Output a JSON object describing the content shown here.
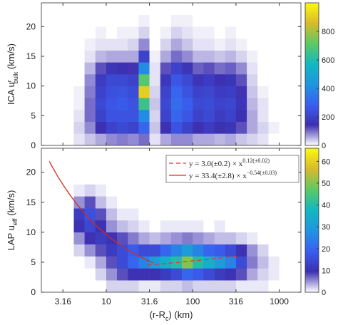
{
  "chart_data": [
    {
      "type": "heatmap",
      "log_x": true,
      "xtick_labels": false,
      "ylabel": [
        "ICA u",
        "r",
        "bulk",
        " (km/s)"
      ],
      "xlim": [
        1.78,
        1780
      ],
      "ylim": [
        0,
        24
      ],
      "xticks": [
        3.16,
        10,
        31.6,
        100,
        316,
        1000
      ],
      "yticks": [
        0,
        5,
        10,
        15,
        20
      ],
      "xbins": [
        1.78,
        2.37,
        3.16,
        4.22,
        5.62,
        7.5,
        10,
        13.3,
        17.8,
        23.7,
        31.6,
        42.2,
        56.2,
        75,
        100,
        133,
        178,
        237,
        316,
        422,
        562,
        750,
        1000,
        1334,
        1780
      ],
      "ybins": [
        0,
        2,
        4,
        6,
        8,
        10,
        12,
        14,
        16,
        18,
        20,
        22,
        24
      ],
      "counts": [
        [
          0,
          0,
          0,
          20,
          40,
          60,
          80,
          90,
          80,
          100,
          20,
          60,
          80,
          80,
          60,
          60,
          50,
          60,
          40,
          30,
          20,
          0,
          0,
          0
        ],
        [
          0,
          0,
          0,
          30,
          80,
          150,
          200,
          220,
          200,
          300,
          40,
          150,
          250,
          200,
          150,
          180,
          150,
          160,
          120,
          60,
          30,
          10,
          0,
          0
        ],
        [
          0,
          0,
          0,
          20,
          100,
          200,
          250,
          250,
          250,
          400,
          30,
          200,
          300,
          260,
          200,
          220,
          180,
          200,
          150,
          60,
          20,
          0,
          0,
          0
        ],
        [
          0,
          0,
          0,
          10,
          100,
          220,
          260,
          270,
          250,
          650,
          40,
          220,
          320,
          280,
          220,
          230,
          200,
          210,
          160,
          50,
          20,
          0,
          0,
          0
        ],
        [
          0,
          0,
          0,
          10,
          90,
          200,
          240,
          250,
          230,
          900,
          30,
          200,
          300,
          250,
          200,
          210,
          180,
          190,
          140,
          40,
          10,
          0,
          0,
          0
        ],
        [
          0,
          0,
          0,
          0,
          80,
          180,
          220,
          220,
          200,
          700,
          20,
          170,
          260,
          220,
          160,
          180,
          150,
          160,
          120,
          30,
          0,
          0,
          0,
          0
        ],
        [
          0,
          0,
          0,
          0,
          50,
          120,
          160,
          150,
          140,
          400,
          20,
          120,
          200,
          160,
          110,
          120,
          100,
          110,
          80,
          20,
          0,
          0,
          0,
          0
        ],
        [
          0,
          0,
          0,
          0,
          20,
          50,
          60,
          60,
          60,
          200,
          10,
          60,
          100,
          80,
          50,
          50,
          40,
          50,
          30,
          10,
          0,
          0,
          0,
          0
        ],
        [
          0,
          0,
          0,
          0,
          10,
          20,
          20,
          20,
          30,
          80,
          0,
          30,
          60,
          40,
          20,
          20,
          10,
          20,
          10,
          0,
          0,
          0,
          0,
          0
        ],
        [
          0,
          0,
          0,
          0,
          0,
          10,
          0,
          10,
          10,
          30,
          0,
          10,
          30,
          20,
          10,
          10,
          0,
          10,
          0,
          0,
          0,
          0,
          0,
          0
        ],
        [
          0,
          0,
          0,
          0,
          0,
          0,
          0,
          0,
          0,
          10,
          0,
          0,
          10,
          10,
          0,
          0,
          0,
          0,
          0,
          0,
          0,
          0,
          0,
          0
        ],
        [
          0,
          0,
          0,
          0,
          0,
          0,
          0,
          0,
          0,
          0,
          0,
          0,
          0,
          0,
          0,
          0,
          0,
          0,
          0,
          0,
          0,
          0,
          0,
          0
        ]
      ],
      "clim": [
        0,
        1000
      ],
      "cticks": [
        0,
        200,
        400,
        600,
        800
      ],
      "colormap": [
        "#ffffff",
        "#3d2fb0",
        "#3a5ff0",
        "#1f96e0",
        "#12b8c0",
        "#5ec962",
        "#d9ba2b",
        "#f9fb0e"
      ]
    },
    {
      "type": "heatmap",
      "log_x": true,
      "ylabel": [
        "LAP u",
        "eff",
        " (km/s)"
      ],
      "xlabel": [
        "(r-R",
        "c",
        ") (km)"
      ],
      "xlim": [
        1.78,
        1780
      ],
      "ylim": [
        0,
        24
      ],
      "xticks": [
        3.16,
        10,
        31.6,
        100,
        316,
        1000
      ],
      "yticks": [
        0,
        5,
        10,
        15,
        20
      ],
      "xbins": [
        1.78,
        2.37,
        3.16,
        4.22,
        5.62,
        7.5,
        10,
        13.3,
        17.8,
        23.7,
        31.6,
        42.2,
        56.2,
        75,
        100,
        133,
        178,
        237,
        316,
        422,
        562,
        750,
        1000,
        1334,
        1780
      ],
      "ybins": [
        0,
        2,
        4,
        6,
        8,
        10,
        12,
        14,
        16,
        18,
        20,
        22,
        24
      ],
      "counts": [
        [
          0,
          0,
          0,
          0,
          0,
          0,
          2,
          2,
          2,
          1,
          1,
          2,
          2,
          3,
          2,
          2,
          2,
          2,
          1,
          1,
          1,
          0,
          0,
          0
        ],
        [
          0,
          0,
          0,
          0,
          0,
          2,
          5,
          8,
          10,
          10,
          10,
          12,
          15,
          20,
          18,
          15,
          12,
          10,
          8,
          4,
          2,
          1,
          0,
          0
        ],
        [
          0,
          0,
          0,
          0,
          1,
          4,
          8,
          15,
          20,
          25,
          30,
          35,
          40,
          50,
          40,
          35,
          30,
          25,
          15,
          6,
          3,
          1,
          0,
          0
        ],
        [
          0,
          0,
          0,
          2,
          5,
          8,
          12,
          15,
          18,
          15,
          15,
          20,
          25,
          30,
          25,
          20,
          18,
          15,
          10,
          5,
          2,
          0,
          0,
          0
        ],
        [
          0,
          0,
          0,
          5,
          10,
          12,
          10,
          8,
          6,
          4,
          3,
          4,
          5,
          6,
          5,
          4,
          3,
          3,
          2,
          1,
          0,
          0,
          0,
          0
        ],
        [
          0,
          0,
          0,
          10,
          14,
          10,
          5,
          3,
          2,
          1,
          0,
          1,
          1,
          1,
          1,
          0,
          1,
          0,
          0,
          0,
          0,
          0,
          0,
          0
        ],
        [
          0,
          0,
          0,
          12,
          16,
          8,
          3,
          1,
          1,
          0,
          0,
          0,
          0,
          0,
          0,
          0,
          0,
          0,
          0,
          0,
          0,
          0,
          0,
          0
        ],
        [
          0,
          0,
          0,
          5,
          8,
          3,
          1,
          0,
          0,
          0,
          0,
          0,
          0,
          0,
          0,
          0,
          0,
          0,
          0,
          0,
          0,
          0,
          0,
          0
        ],
        [
          0,
          0,
          0,
          1,
          2,
          1,
          0,
          0,
          0,
          0,
          0,
          0,
          0,
          0,
          0,
          0,
          0,
          0,
          0,
          0,
          0,
          0,
          0,
          0
        ],
        [
          0,
          0,
          0,
          0,
          0,
          0,
          0,
          0,
          0,
          0,
          0,
          0,
          0,
          0,
          0,
          0,
          0,
          0,
          0,
          0,
          0,
          0,
          0,
          0
        ],
        [
          0,
          0,
          0,
          0,
          0,
          0,
          0,
          0,
          0,
          0,
          0,
          0,
          0,
          0,
          0,
          0,
          0,
          0,
          0,
          0,
          0,
          0,
          0,
          0
        ],
        [
          0,
          0,
          0,
          0,
          0,
          0,
          0,
          0,
          0,
          0,
          0,
          0,
          0,
          0,
          0,
          0,
          0,
          0,
          0,
          0,
          0,
          0,
          0,
          0
        ]
      ],
      "clim": [
        0,
        66
      ],
      "cticks": [
        0,
        10,
        20,
        30,
        40,
        50,
        60
      ],
      "colormap": [
        "#ffffff",
        "#3d2fb0",
        "#3a5ff0",
        "#1f96e0",
        "#12b8c0",
        "#5ec962",
        "#d9ba2b",
        "#f9fb0e"
      ],
      "legend": "upper right",
      "fits": [
        {
          "label": [
            "y = 3.0(±0.2) × x",
            "0.12(±0.02)"
          ],
          "a": 3.0,
          "b": 0.12,
          "x_range": [
            30,
            320
          ],
          "color": "#e8332a",
          "dash": true
        },
        {
          "label": [
            "y = 33.4(±2.8) × x",
            "−0.54(±0.03)"
          ],
          "a": 33.4,
          "b": -0.54,
          "x_range": [
            2.2,
            35
          ],
          "color": "#d42a1e",
          "dash": false
        }
      ]
    }
  ]
}
